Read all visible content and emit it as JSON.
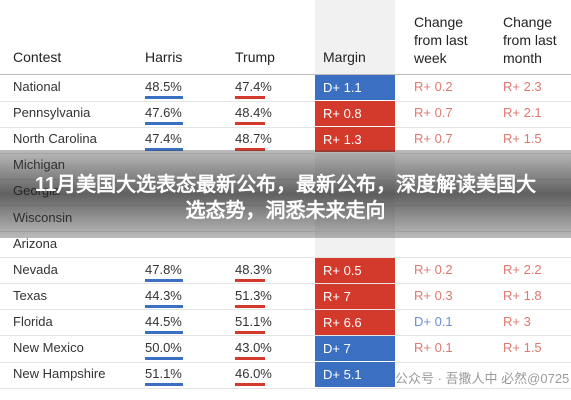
{
  "table": {
    "headers": [
      "Contest",
      "Harris",
      "Trump",
      "Margin",
      "Change from last week",
      "Change from last month"
    ],
    "rows": [
      [
        "National",
        "48.5%",
        "47.4%",
        "D+ 1.1",
        "R+ 0.2",
        "R+ 2.3"
      ],
      [
        "Pennsylvania",
        "47.6%",
        "48.4%",
        "R+ 0.8",
        "R+ 0.7",
        "R+ 2.1"
      ],
      [
        "North Carolina",
        "47.4%",
        "48.7%",
        "R+ 1.3",
        "R+ 0.7",
        "R+ 1.5"
      ],
      [
        "Michigan"
      ],
      [
        "Georgia"
      ],
      [
        "Wisconsin"
      ],
      [
        "Arizona"
      ],
      [
        "Nevada",
        "47.8%",
        "48.3%",
        "R+ 0.5",
        "R+ 0.2",
        "R+ 2.2"
      ],
      [
        "Texas",
        "44.3%",
        "51.3%",
        "R+ 7",
        "R+ 0.3",
        "R+ 1.8"
      ],
      [
        "Florida",
        "44.5%",
        "51.1%",
        "R+ 6.6",
        "D+ 0.1",
        "R+ 3"
      ],
      [
        "New Mexico",
        "50.0%",
        "43.0%",
        "D+ 7",
        "R+ 0.1",
        "R+ 1.5"
      ],
      [
        "New Hampshire",
        "51.1%",
        "46.0%",
        "D+ 5.1"
      ]
    ]
  },
  "banner": {
    "title": "11月美国大选表态最新公布，最新公布，深度解读美国大选态势，洞悉未来走向"
  },
  "watermark": "公众号 · 吾撒人中 必然@0725"
}
